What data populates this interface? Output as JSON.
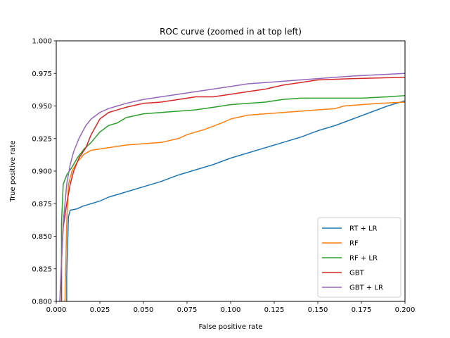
{
  "chart_data": {
    "type": "line",
    "title": "ROC curve (zoomed in at top left)",
    "xlabel": "False positive rate",
    "ylabel": "True positive rate",
    "xlim": [
      0.0,
      0.2
    ],
    "ylim": [
      0.8,
      1.0
    ],
    "xticks": [
      "0.000",
      "0.025",
      "0.050",
      "0.075",
      "0.100",
      "0.125",
      "0.150",
      "0.175",
      "0.200"
    ],
    "yticks": [
      "0.800",
      "0.825",
      "0.850",
      "0.875",
      "0.900",
      "0.925",
      "0.950",
      "0.975",
      "1.000"
    ],
    "grid": false,
    "legend_position": "lower-right",
    "series": [
      {
        "name": "RT + LR",
        "color": "#1f77b4",
        "points": [
          [
            0.006,
            0.8
          ],
          [
            0.006,
            0.82
          ],
          [
            0.007,
            0.865
          ],
          [
            0.008,
            0.87
          ],
          [
            0.012,
            0.871
          ],
          [
            0.015,
            0.873
          ],
          [
            0.02,
            0.875
          ],
          [
            0.025,
            0.877
          ],
          [
            0.03,
            0.88
          ],
          [
            0.04,
            0.884
          ],
          [
            0.05,
            0.888
          ],
          [
            0.06,
            0.892
          ],
          [
            0.07,
            0.897
          ],
          [
            0.08,
            0.901
          ],
          [
            0.09,
            0.905
          ],
          [
            0.1,
            0.91
          ],
          [
            0.11,
            0.914
          ],
          [
            0.12,
            0.918
          ],
          [
            0.13,
            0.922
          ],
          [
            0.14,
            0.926
          ],
          [
            0.15,
            0.931
          ],
          [
            0.16,
            0.935
          ],
          [
            0.17,
            0.94
          ],
          [
            0.18,
            0.945
          ],
          [
            0.19,
            0.95
          ],
          [
            0.2,
            0.954
          ]
        ]
      },
      {
        "name": "RF",
        "color": "#ff7f0e",
        "points": [
          [
            0.005,
            0.8
          ],
          [
            0.006,
            0.86
          ],
          [
            0.007,
            0.89
          ],
          [
            0.009,
            0.9
          ],
          [
            0.012,
            0.907
          ],
          [
            0.016,
            0.913
          ],
          [
            0.02,
            0.916
          ],
          [
            0.03,
            0.918
          ],
          [
            0.04,
            0.92
          ],
          [
            0.05,
            0.921
          ],
          [
            0.06,
            0.922
          ],
          [
            0.07,
            0.925
          ],
          [
            0.075,
            0.928
          ],
          [
            0.085,
            0.932
          ],
          [
            0.095,
            0.937
          ],
          [
            0.1,
            0.94
          ],
          [
            0.11,
            0.943
          ],
          [
            0.12,
            0.944
          ],
          [
            0.13,
            0.945
          ],
          [
            0.14,
            0.946
          ],
          [
            0.15,
            0.947
          ],
          [
            0.16,
            0.948
          ],
          [
            0.165,
            0.95
          ],
          [
            0.175,
            0.951
          ],
          [
            0.185,
            0.952
          ],
          [
            0.2,
            0.953
          ]
        ]
      },
      {
        "name": "RF + LR",
        "color": "#2ca02c",
        "points": [
          [
            0.003,
            0.8
          ],
          [
            0.003,
            0.86
          ],
          [
            0.004,
            0.89
          ],
          [
            0.006,
            0.897
          ],
          [
            0.009,
            0.903
          ],
          [
            0.012,
            0.91
          ],
          [
            0.016,
            0.917
          ],
          [
            0.02,
            0.922
          ],
          [
            0.025,
            0.93
          ],
          [
            0.03,
            0.935
          ],
          [
            0.035,
            0.937
          ],
          [
            0.04,
            0.941
          ],
          [
            0.05,
            0.944
          ],
          [
            0.06,
            0.945
          ],
          [
            0.07,
            0.946
          ],
          [
            0.08,
            0.947
          ],
          [
            0.09,
            0.949
          ],
          [
            0.1,
            0.951
          ],
          [
            0.11,
            0.952
          ],
          [
            0.12,
            0.953
          ],
          [
            0.13,
            0.955
          ],
          [
            0.14,
            0.956
          ],
          [
            0.15,
            0.956
          ],
          [
            0.175,
            0.956
          ],
          [
            0.19,
            0.957
          ],
          [
            0.2,
            0.958
          ]
        ]
      },
      {
        "name": "GBT",
        "color": "#d62728",
        "points": [
          [
            0.003,
            0.8
          ],
          [
            0.003,
            0.83
          ],
          [
            0.004,
            0.857
          ],
          [
            0.006,
            0.875
          ],
          [
            0.008,
            0.89
          ],
          [
            0.01,
            0.9
          ],
          [
            0.013,
            0.91
          ],
          [
            0.017,
            0.918
          ],
          [
            0.02,
            0.928
          ],
          [
            0.025,
            0.94
          ],
          [
            0.03,
            0.945
          ],
          [
            0.035,
            0.947
          ],
          [
            0.04,
            0.949
          ],
          [
            0.05,
            0.952
          ],
          [
            0.06,
            0.953
          ],
          [
            0.07,
            0.955
          ],
          [
            0.08,
            0.957
          ],
          [
            0.09,
            0.957
          ],
          [
            0.1,
            0.959
          ],
          [
            0.11,
            0.961
          ],
          [
            0.12,
            0.963
          ],
          [
            0.13,
            0.966
          ],
          [
            0.14,
            0.968
          ],
          [
            0.15,
            0.97
          ],
          [
            0.17,
            0.971
          ],
          [
            0.2,
            0.972
          ]
        ]
      },
      {
        "name": "GBT + LR",
        "color": "#9467bd",
        "points": [
          [
            0.002,
            0.8
          ],
          [
            0.003,
            0.83
          ],
          [
            0.004,
            0.86
          ],
          [
            0.006,
            0.89
          ],
          [
            0.008,
            0.905
          ],
          [
            0.01,
            0.915
          ],
          [
            0.013,
            0.925
          ],
          [
            0.017,
            0.935
          ],
          [
            0.02,
            0.94
          ],
          [
            0.025,
            0.945
          ],
          [
            0.03,
            0.948
          ],
          [
            0.035,
            0.95
          ],
          [
            0.04,
            0.952
          ],
          [
            0.05,
            0.955
          ],
          [
            0.06,
            0.957
          ],
          [
            0.07,
            0.959
          ],
          [
            0.08,
            0.961
          ],
          [
            0.09,
            0.963
          ],
          [
            0.1,
            0.965
          ],
          [
            0.11,
            0.967
          ],
          [
            0.12,
            0.968
          ],
          [
            0.13,
            0.969
          ],
          [
            0.14,
            0.97
          ],
          [
            0.15,
            0.971
          ],
          [
            0.17,
            0.973
          ],
          [
            0.2,
            0.975
          ]
        ]
      }
    ]
  }
}
